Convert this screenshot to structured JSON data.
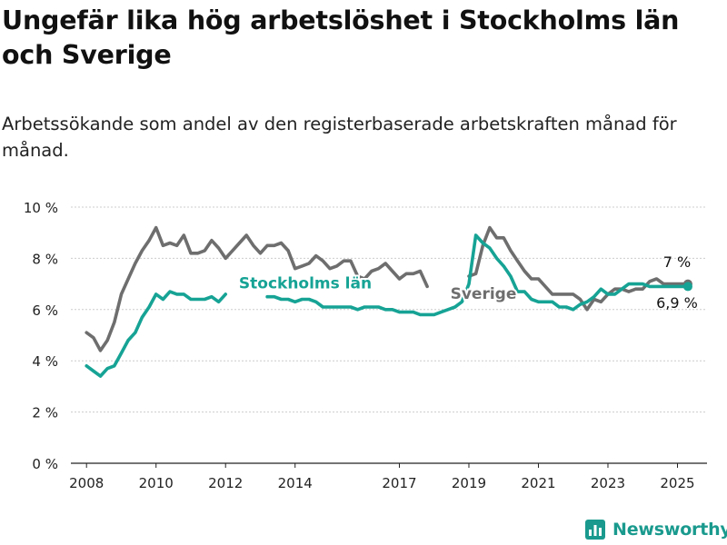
{
  "title": "Ungefär lika hög arbetslöshet i Stockholms län och Sverige",
  "subtitle": "Arbetssökande som andel av den registerbaserade arbetskraften månad för månad.",
  "brand": "Newsworthy",
  "colors": {
    "sweden": "#6e6e6e",
    "stockholm": "#16a395",
    "axis": "#222222",
    "grid": "#cccccc"
  },
  "chart_data": {
    "type": "line",
    "title": "Ungefär lika hög arbetslöshet i Stockholms län och Sverige",
    "subtitle": "Arbetssökande som andel av den registerbaserade arbetskraften månad för månad.",
    "xlabel": "",
    "ylabel": "",
    "ylim": [
      0,
      10
    ],
    "yticks": [
      0,
      2,
      4,
      6,
      8,
      10
    ],
    "ytick_labels": [
      "0 %",
      "2 %",
      "4 %",
      "6 %",
      "8 %",
      "10 %"
    ],
    "xticks": [
      2008,
      2010,
      2012,
      2014,
      2017,
      2019,
      2021,
      2023,
      2025
    ],
    "xtick_labels": [
      "2008",
      "2010",
      "2012",
      "2014",
      "2017",
      "2019",
      "2021",
      "2023",
      "2025"
    ],
    "grid": "horizontal",
    "legend": "direct labels",
    "series": [
      {
        "name": "Sverige",
        "color": "#6e6e6e",
        "end_label": "7 %",
        "x": [
          2008.0,
          2008.2,
          2008.4,
          2008.6,
          2008.8,
          2009.0,
          2009.2,
          2009.4,
          2009.6,
          2009.8,
          2010.0,
          2010.2,
          2010.4,
          2010.6,
          2010.8,
          2011.0,
          2011.2,
          2011.4,
          2011.6,
          2011.8,
          2012.0,
          2012.2,
          2012.4,
          2012.6,
          2012.8,
          2013.0,
          2013.2,
          2013.4,
          2013.6,
          2013.8,
          2014.0,
          2014.2,
          2014.4,
          2014.6,
          2014.8,
          2015.0,
          2015.2,
          2015.4,
          2015.6,
          2015.8,
          2016.0,
          2016.2,
          2016.4,
          2016.6,
          2016.8,
          2017.0,
          2017.2,
          2017.4,
          2017.6,
          2017.8,
          2018.0,
          2018.2,
          2018.4,
          2018.6,
          2018.8,
          2019.0,
          2019.2,
          2019.4,
          2019.6,
          2019.8,
          2020.0,
          2020.2,
          2020.4,
          2020.6,
          2020.8,
          2021.0,
          2021.2,
          2021.4,
          2021.6,
          2021.8,
          2022.0,
          2022.2,
          2022.4,
          2022.6,
          2022.8,
          2023.0,
          2023.2,
          2023.4,
          2023.6,
          2023.8,
          2024.0,
          2024.2,
          2024.4,
          2024.6,
          2024.8,
          2025.0,
          2025.2,
          2025.3
        ],
        "values": [
          5.1,
          4.9,
          4.4,
          4.8,
          5.5,
          6.6,
          7.2,
          7.8,
          8.3,
          8.7,
          9.2,
          8.5,
          8.6,
          8.5,
          8.9,
          8.2,
          8.2,
          8.3,
          8.7,
          8.4,
          8.0,
          8.3,
          8.6,
          8.9,
          8.5,
          8.2,
          8.5,
          8.5,
          8.6,
          8.3,
          7.6,
          7.7,
          7.8,
          8.1,
          7.9,
          7.6,
          7.7,
          7.9,
          7.9,
          7.3,
          7.2,
          7.5,
          7.6,
          7.8,
          7.5,
          7.2,
          7.4,
          7.4,
          7.5,
          6.9,
          null,
          null,
          null,
          null,
          null,
          7.3,
          7.4,
          8.5,
          9.2,
          8.8,
          8.8,
          8.3,
          7.9,
          7.5,
          7.2,
          7.2,
          6.9,
          6.6,
          6.6,
          6.6,
          6.6,
          6.4,
          6.0,
          6.4,
          6.3,
          6.6,
          6.8,
          6.8,
          6.7,
          6.8,
          6.8,
          7.1,
          7.2,
          7.0,
          7.0,
          7.0,
          7.0,
          7.0
        ]
      },
      {
        "name": "Stockholms län",
        "color": "#16a395",
        "end_label": "6,9 %",
        "x": [
          2008.0,
          2008.2,
          2008.4,
          2008.6,
          2008.8,
          2009.0,
          2009.2,
          2009.4,
          2009.6,
          2009.8,
          2010.0,
          2010.2,
          2010.4,
          2010.6,
          2010.8,
          2011.0,
          2011.2,
          2011.4,
          2011.6,
          2011.8,
          2012.0,
          2012.2,
          2012.4,
          2012.6,
          2012.8,
          2013.0,
          2013.2,
          2013.4,
          2013.6,
          2013.8,
          2014.0,
          2014.2,
          2014.4,
          2014.6,
          2014.8,
          2015.0,
          2015.2,
          2015.4,
          2015.6,
          2015.8,
          2016.0,
          2016.2,
          2016.4,
          2016.6,
          2016.8,
          2017.0,
          2017.2,
          2017.4,
          2017.6,
          2017.8,
          2018.0,
          2018.2,
          2018.4,
          2018.6,
          2018.8,
          2019.0,
          2019.2,
          2019.4,
          2019.6,
          2019.8,
          2020.0,
          2020.2,
          2020.4,
          2020.6,
          2020.8,
          2021.0,
          2021.2,
          2021.4,
          2021.6,
          2021.8,
          2022.0,
          2022.2,
          2022.4,
          2022.6,
          2022.8,
          2023.0,
          2023.2,
          2023.4,
          2023.6,
          2023.8,
          2024.0,
          2024.2,
          2024.4,
          2024.6,
          2024.8,
          2025.0,
          2025.2,
          2025.3
        ],
        "values": [
          3.8,
          3.6,
          3.4,
          3.7,
          3.8,
          4.3,
          4.8,
          5.1,
          5.7,
          6.1,
          6.6,
          6.4,
          6.7,
          6.6,
          6.6,
          6.4,
          6.4,
          6.4,
          6.5,
          6.3,
          6.6,
          null,
          null,
          null,
          null,
          null,
          6.5,
          6.5,
          6.4,
          6.4,
          6.3,
          6.4,
          6.4,
          6.3,
          6.1,
          6.1,
          6.1,
          6.1,
          6.1,
          6.0,
          6.1,
          6.1,
          6.1,
          6.0,
          6.0,
          5.9,
          5.9,
          5.9,
          5.8,
          5.8,
          5.8,
          5.9,
          6.0,
          6.1,
          6.3,
          7.0,
          8.9,
          8.6,
          8.4,
          8.0,
          7.7,
          7.3,
          6.7,
          6.7,
          6.4,
          6.3,
          6.3,
          6.3,
          6.1,
          6.1,
          6.0,
          6.2,
          6.3,
          6.5,
          6.8,
          6.6,
          6.6,
          6.8,
          7.0,
          7.0,
          7.0,
          6.9,
          6.9,
          6.9,
          6.9,
          6.9,
          6.9,
          6.9
        ]
      }
    ],
    "annotations": [
      "Stockholms län",
      "Sverige",
      "7 %",
      "6,9 %"
    ]
  }
}
